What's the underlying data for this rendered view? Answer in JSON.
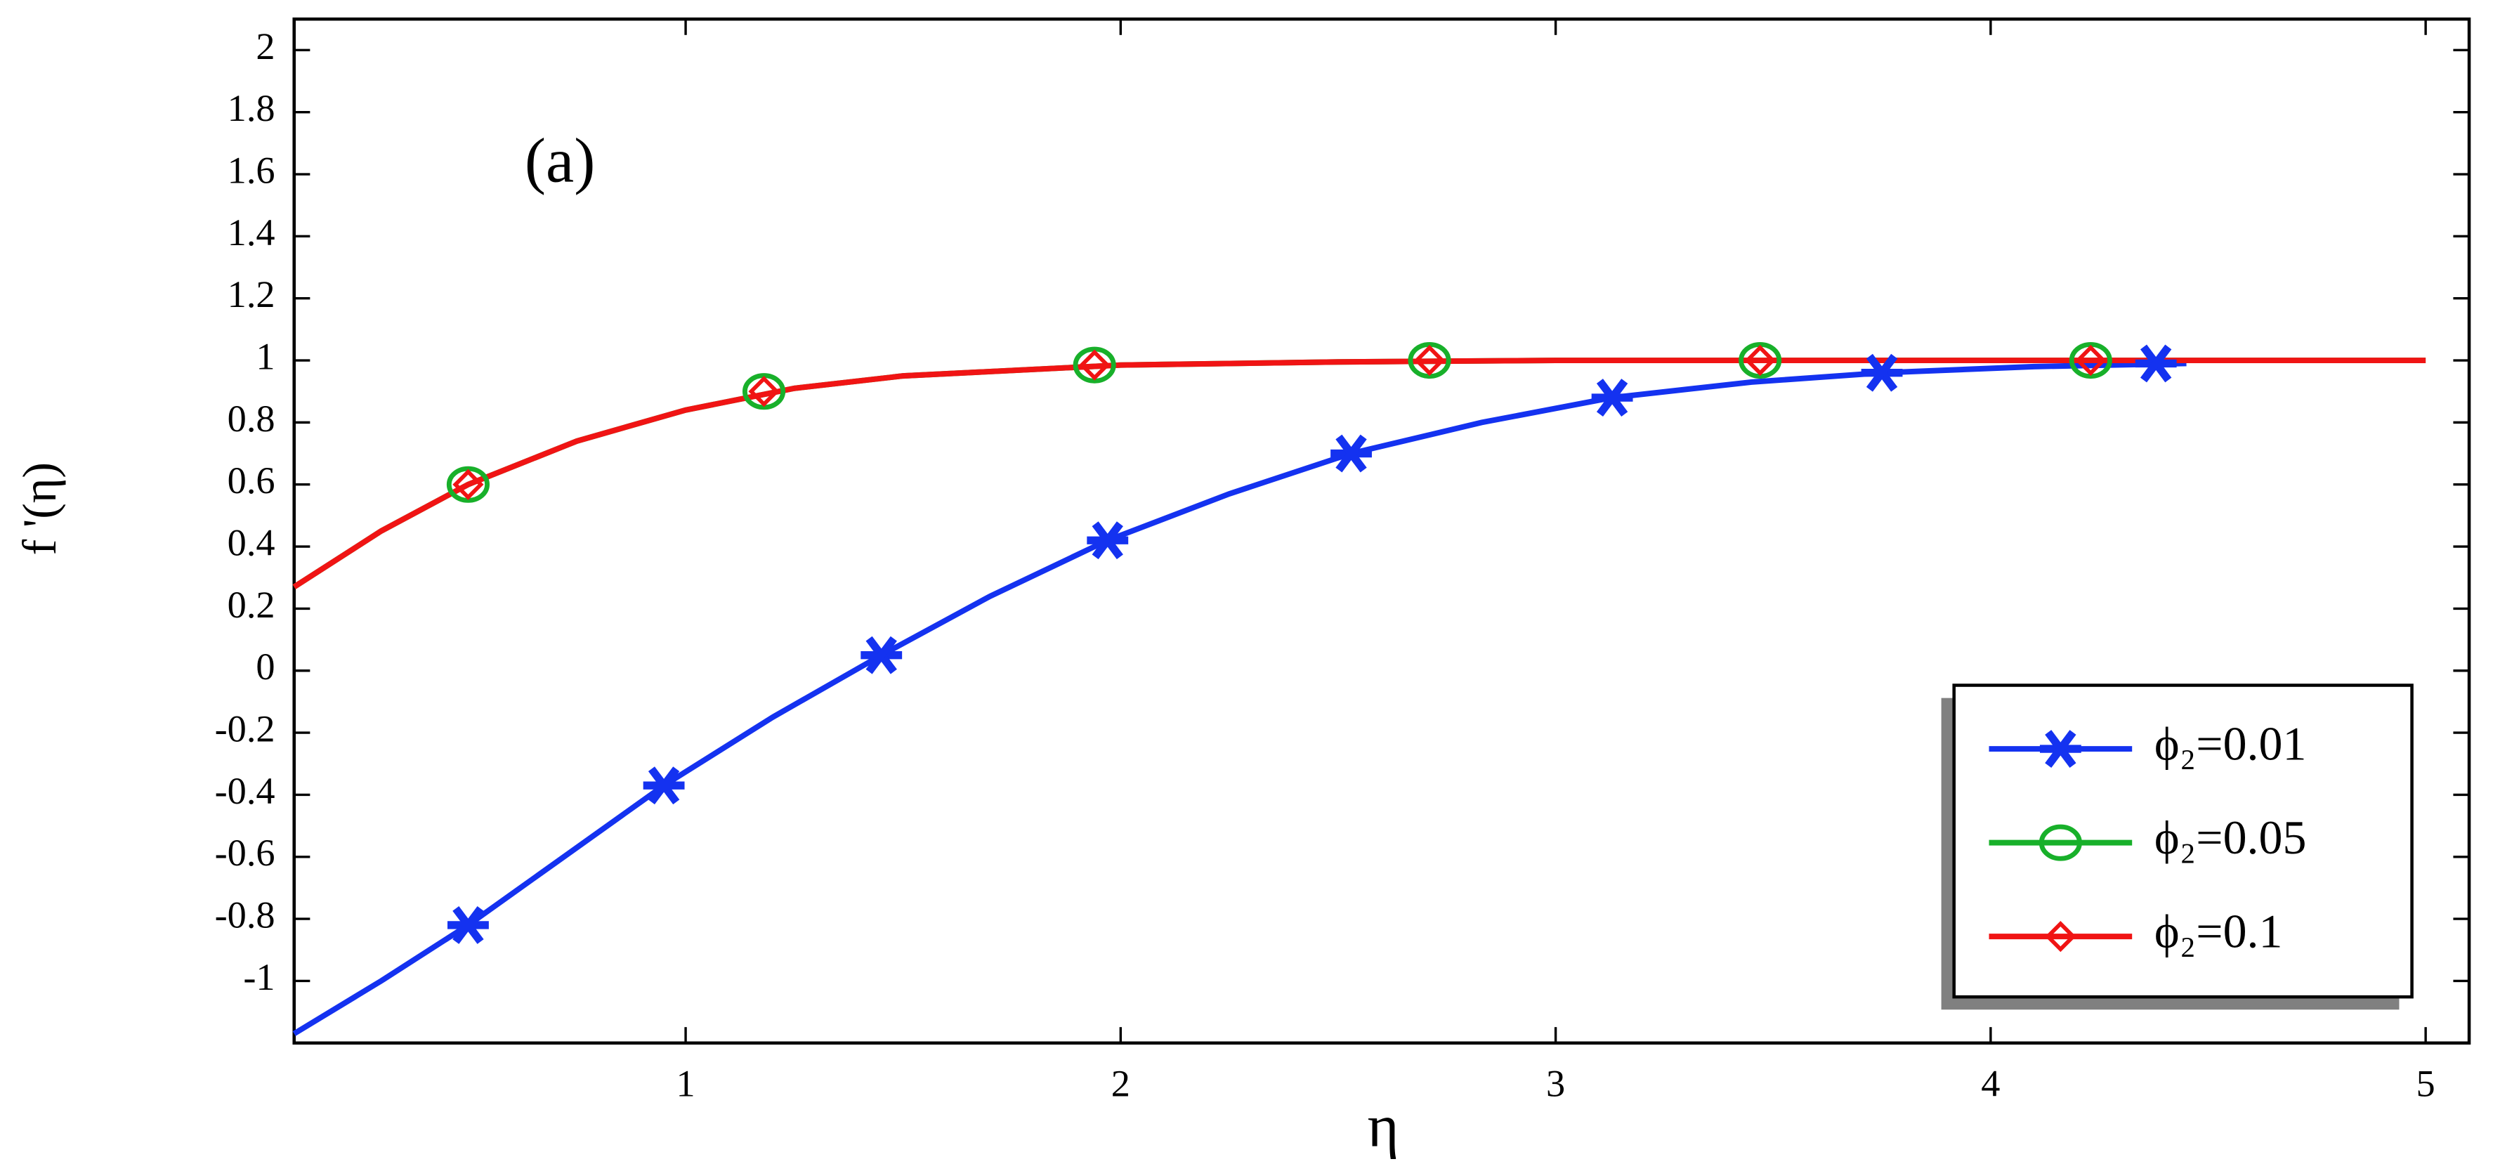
{
  "chart_data": {
    "type": "line",
    "annotation": "(a)",
    "x_label": "η",
    "y_label": "f '(η)",
    "xlim": [
      0.1,
      5.1
    ],
    "ylim": [
      -1.2,
      2.1
    ],
    "xticks": [
      1,
      2,
      3,
      4,
      5
    ],
    "yticks": [
      -1,
      -0.8,
      -0.6,
      -0.4,
      -0.2,
      0,
      0.2,
      0.4,
      0.6,
      0.8,
      1,
      1.2,
      1.4,
      1.6,
      1.8,
      2
    ],
    "legend_position": "lower right",
    "series": [
      {
        "name": "ϕ₂=0.01",
        "color": "#1432f0",
        "marker": "asterisk",
        "x": [
          0.1,
          0.3,
          0.5,
          0.7,
          0.95,
          1.2,
          1.45,
          1.7,
          1.97,
          2.25,
          2.53,
          2.83,
          3.13,
          3.45,
          3.75,
          4.1,
          4.45
        ],
        "values": [
          -1.17,
          -1.0,
          -0.82,
          -0.62,
          -0.37,
          -0.15,
          0.05,
          0.24,
          0.42,
          0.57,
          0.7,
          0.8,
          0.88,
          0.93,
          0.96,
          0.98,
          0.99
        ],
        "marker_x": [
          0.5,
          0.95,
          1.45,
          1.97,
          2.53,
          3.13,
          3.75,
          4.38
        ],
        "marker_values": [
          -0.82,
          -0.37,
          0.05,
          0.42,
          0.7,
          0.88,
          0.96,
          0.99
        ]
      },
      {
        "name": "ϕ₂=0.05",
        "color": "#18b02a",
        "marker": "circle",
        "x": [
          0.1,
          0.3,
          0.5,
          0.75,
          1,
          1.25,
          1.5,
          2,
          2.5,
          3,
          4,
          5
        ],
        "values": [
          0.27,
          0.45,
          0.6,
          0.74,
          0.84,
          0.91,
          0.95,
          0.985,
          0.995,
          1,
          1,
          1
        ],
        "marker_x": [
          0.5,
          1.18,
          1.94,
          2.71,
          3.47,
          4.23
        ],
        "marker_values": [
          0.6,
          0.9,
          0.985,
          1,
          1,
          1
        ]
      },
      {
        "name": "ϕ₂=0.1",
        "color": "#f01414",
        "marker": "diamond",
        "x": [
          0.1,
          0.3,
          0.5,
          0.75,
          1,
          1.25,
          1.5,
          2,
          2.5,
          3,
          4,
          5
        ],
        "values": [
          0.27,
          0.45,
          0.6,
          0.74,
          0.84,
          0.91,
          0.95,
          0.985,
          0.995,
          1,
          1,
          1
        ],
        "marker_x": [
          0.5,
          1.18,
          1.94,
          2.71,
          3.47,
          4.23
        ],
        "marker_values": [
          0.6,
          0.9,
          0.985,
          1,
          1,
          1
        ]
      }
    ]
  }
}
